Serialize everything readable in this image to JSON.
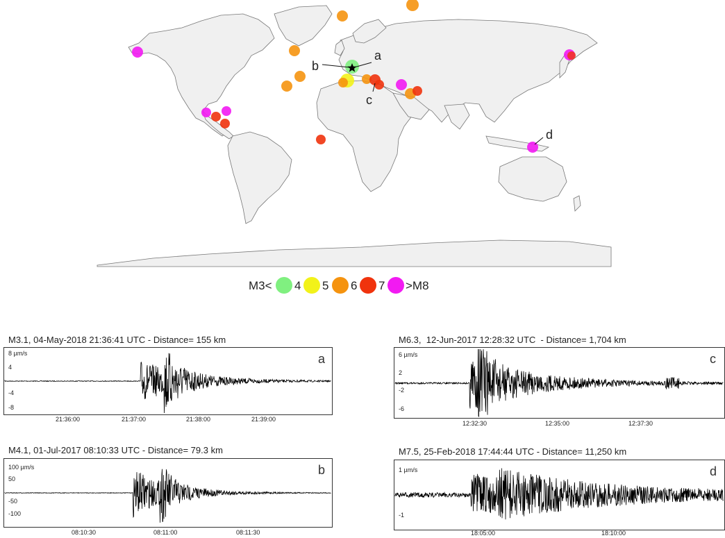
{
  "map": {
    "legend": {
      "lead": "M3<",
      "items": [
        {
          "label": "4",
          "color": "#80f080"
        },
        {
          "label": "5",
          "color": "#f2f21a"
        },
        {
          "label": "6",
          "color": "#f5930f"
        },
        {
          "label": "7",
          "color": "#f0330d"
        },
        {
          "label": ">M8",
          "color": "#f21af2"
        }
      ]
    },
    "markers": {
      "a": "a",
      "b": "b",
      "c": "c",
      "d": "d"
    },
    "colors": {
      "land": "#f0f0f0",
      "coast": "#777777",
      "station": "#000000"
    }
  },
  "panels": [
    {
      "id": "a",
      "title": "M3.1, 04-May-2018 21:36:41 UTC - Distance= 155 km",
      "letter": "a",
      "unit_label": "8 µm/s",
      "yticks": [
        "4",
        "-4",
        "-8"
      ],
      "xticks": [
        "21:36:00",
        "21:37:00",
        "21:38:00",
        "21:39:00"
      ]
    },
    {
      "id": "b",
      "title": "M4.1, 01-Jul-2017 08:10:33 UTC - Distance= 79.3 km",
      "letter": "b",
      "unit_label": "100  µm/s",
      "yticks": [
        "50",
        "-50",
        "-100"
      ],
      "xticks": [
        "08:10:30",
        "08:11:00",
        "08:11:30"
      ]
    },
    {
      "id": "c",
      "title": "M6.3,  12-Jun-2017 12:28:32 UTC  - Distance= 1,704 km",
      "letter": "c",
      "unit_label": "6  µm/s",
      "yticks": [
        "2",
        "-2",
        "-6"
      ],
      "xticks": [
        "12:32:30",
        "12:35:00",
        "12:37:30"
      ]
    },
    {
      "id": "d",
      "title": "M7.5, 25-Feb-2018 17:44:44 UTC - Distance= 11,250 km",
      "letter": "d",
      "unit_label": "1  µm/s",
      "yticks": [
        "-1"
      ],
      "xticks": [
        "18:05:00",
        "18:10:00"
      ]
    }
  ]
}
